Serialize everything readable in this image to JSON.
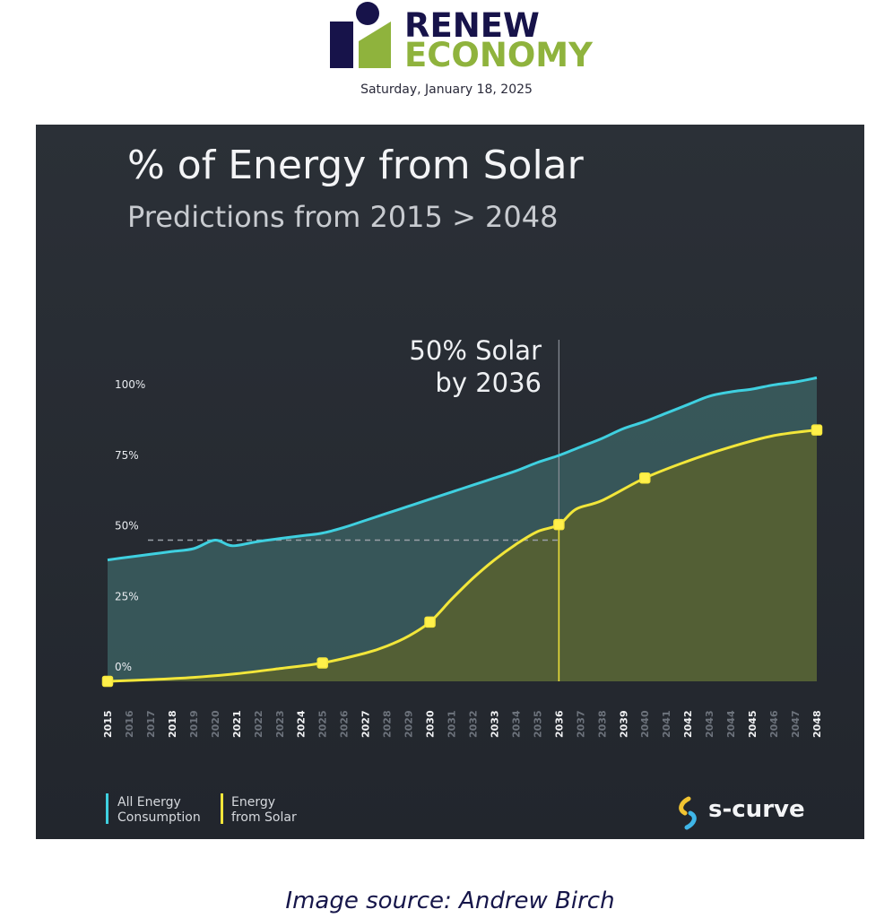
{
  "header": {
    "logo_line1": "RENEW",
    "logo_line2": "ECONOMY",
    "date": "Saturday, January 18, 2025",
    "colors": {
      "navy": "#17134a",
      "green": "#8fb33d"
    }
  },
  "caption": "Image source: Andrew Birch",
  "chart_data": {
    "type": "area",
    "title": "% of Energy from Solar",
    "subtitle": "Predictions from 2015 > 2048",
    "annotation": {
      "text_line1": "50% Solar",
      "text_line2": "by 2036",
      "x": 2036
    },
    "reference_line": {
      "y": 50,
      "style": "dashed"
    },
    "ylim": [
      0,
      100
    ],
    "y_ticks": [
      {
        "value": 0,
        "label": "0%"
      },
      {
        "value": 25,
        "label": "25%"
      },
      {
        "value": 50,
        "label": "50%"
      },
      {
        "value": 75,
        "label": "75%"
      },
      {
        "value": 100,
        "label": "100%"
      }
    ],
    "xlim": [
      2015,
      2048
    ],
    "x_ticks": [
      {
        "year": 2015,
        "label": "2015",
        "major": true
      },
      {
        "year": 2016,
        "label": "2016",
        "major": false
      },
      {
        "year": 2017,
        "label": "2017",
        "major": false
      },
      {
        "year": 2018,
        "label": "2018",
        "major": true
      },
      {
        "year": 2019,
        "label": "2019",
        "major": false
      },
      {
        "year": 2020,
        "label": "2020",
        "major": false
      },
      {
        "year": 2021,
        "label": "2021",
        "major": true
      },
      {
        "year": 2022,
        "label": "2022",
        "major": false
      },
      {
        "year": 2023,
        "label": "2023",
        "major": false
      },
      {
        "year": 2024,
        "label": "2024",
        "major": true
      },
      {
        "year": 2025,
        "label": "2025",
        "major": false
      },
      {
        "year": 2026,
        "label": "2026",
        "major": false
      },
      {
        "year": 2027,
        "label": "2027",
        "major": true
      },
      {
        "year": 2028,
        "label": "2028",
        "major": false
      },
      {
        "year": 2029,
        "label": "2029",
        "major": false
      },
      {
        "year": 2030,
        "label": "2030",
        "major": true
      },
      {
        "year": 2031,
        "label": "2031",
        "major": false
      },
      {
        "year": 2032,
        "label": "2032",
        "major": false
      },
      {
        "year": 2033,
        "label": "2033",
        "major": true
      },
      {
        "year": 2034,
        "label": "2034",
        "major": false
      },
      {
        "year": 2035,
        "label": "2035",
        "major": false
      },
      {
        "year": 2036,
        "label": "2036",
        "major": true
      },
      {
        "year": 2037,
        "label": "2037",
        "major": false
      },
      {
        "year": 2038,
        "label": "2038",
        "major": false
      },
      {
        "year": 2039,
        "label": "2039",
        "major": true
      },
      {
        "year": 2040,
        "label": "2040",
        "major": false
      },
      {
        "year": 2041,
        "label": "2041",
        "major": false
      },
      {
        "year": 2042,
        "label": "2042",
        "major": true
      },
      {
        "year": 2043,
        "label": "2043",
        "major": false
      },
      {
        "year": 2044,
        "label": "2044",
        "major": false
      },
      {
        "year": 2045,
        "label": "2045",
        "major": true
      },
      {
        "year": 2046,
        "label": "2046",
        "major": false
      },
      {
        "year": 2047,
        "label": "2047",
        "major": false
      },
      {
        "year": 2048,
        "label": "2048",
        "major": true
      }
    ],
    "series": [
      {
        "name": "All Energy Consumption",
        "color": "#3fd0e0",
        "points": [
          [
            2015,
            43
          ],
          [
            2016,
            44
          ],
          [
            2017,
            45
          ],
          [
            2018,
            46
          ],
          [
            2019,
            47
          ],
          [
            2020,
            50
          ],
          [
            2020.8,
            48
          ],
          [
            2022,
            49.5
          ],
          [
            2024,
            51.5
          ],
          [
            2025,
            52.5
          ],
          [
            2026,
            54.5
          ],
          [
            2027,
            57
          ],
          [
            2028,
            59.5
          ],
          [
            2029,
            62
          ],
          [
            2030,
            64.5
          ],
          [
            2031,
            67
          ],
          [
            2032,
            69.5
          ],
          [
            2033,
            72
          ],
          [
            2034,
            74.5
          ],
          [
            2035,
            77.5
          ],
          [
            2036,
            80
          ],
          [
            2037,
            83
          ],
          [
            2038,
            86
          ],
          [
            2039,
            89.5
          ],
          [
            2040,
            92
          ],
          [
            2041,
            95
          ],
          [
            2042,
            98
          ],
          [
            2043,
            101
          ],
          [
            2044,
            102.5
          ],
          [
            2045,
            103.5
          ],
          [
            2046,
            105
          ],
          [
            2047,
            106
          ],
          [
            2048,
            107.5
          ]
        ]
      },
      {
        "name": "Energy from Solar",
        "color": "#f2e63a",
        "points": [
          [
            2015,
            0
          ],
          [
            2017,
            0.6
          ],
          [
            2019,
            1.4
          ],
          [
            2021,
            2.7
          ],
          [
            2023,
            4.5
          ],
          [
            2025,
            6.5
          ],
          [
            2027,
            10
          ],
          [
            2028,
            12.5
          ],
          [
            2029,
            16
          ],
          [
            2030,
            21
          ],
          [
            2031,
            29
          ],
          [
            2032,
            36.5
          ],
          [
            2033,
            43
          ],
          [
            2034,
            48.5
          ],
          [
            2035,
            53
          ],
          [
            2036,
            55.5
          ],
          [
            2036.8,
            61
          ],
          [
            2038,
            64
          ],
          [
            2040,
            72
          ],
          [
            2042,
            78
          ],
          [
            2044,
            83
          ],
          [
            2046,
            87
          ],
          [
            2048,
            89
          ]
        ],
        "markers": [
          [
            2015,
            0
          ],
          [
            2025,
            6.5
          ],
          [
            2030,
            21
          ],
          [
            2036,
            55.5
          ],
          [
            2040,
            72
          ],
          [
            2048,
            89
          ]
        ]
      }
    ],
    "legend": [
      {
        "line1": "All Energy",
        "line2": "Consumption",
        "color": "#3fd0e0"
      },
      {
        "line1": "Energy",
        "line2": "from Solar",
        "color": "#f2e63a"
      }
    ],
    "legend_placement": "bottom-left",
    "brand": "s-curve"
  }
}
